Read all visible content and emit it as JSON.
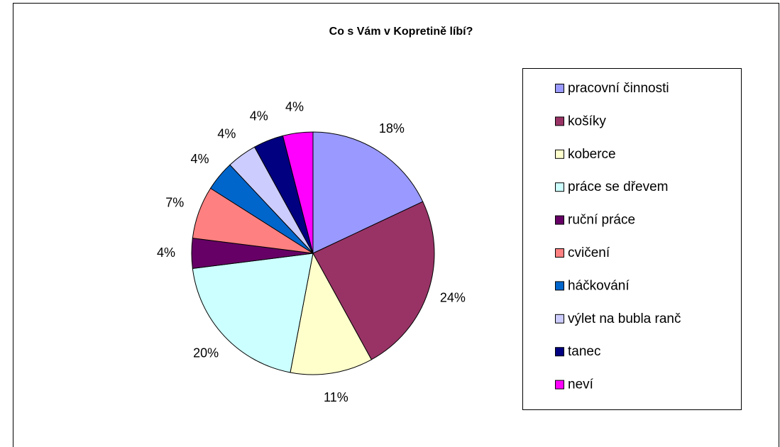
{
  "chart_data": {
    "type": "pie",
    "title": "Co s Vám v Kopretině líbí?",
    "categories": [
      "pracovní činnosti",
      "košíky",
      "koberce",
      "práce se dřevem",
      "ruční práce",
      "cvičení",
      "háčkování",
      "výlet na bubla ranč",
      "tanec",
      "neví"
    ],
    "values": [
      18,
      24,
      11,
      20,
      4,
      7,
      4,
      4,
      4,
      4
    ],
    "value_labels": [
      "18%",
      "24%",
      "11%",
      "20%",
      "4%",
      "7%",
      "4%",
      "4%",
      "4%",
      "4%"
    ],
    "colors": [
      "#9999ff",
      "#993366",
      "#ffffcc",
      "#ccffff",
      "#660066",
      "#ff8080",
      "#0066cc",
      "#ccccff",
      "#000080",
      "#ff00ff"
    ],
    "legend": "right"
  }
}
